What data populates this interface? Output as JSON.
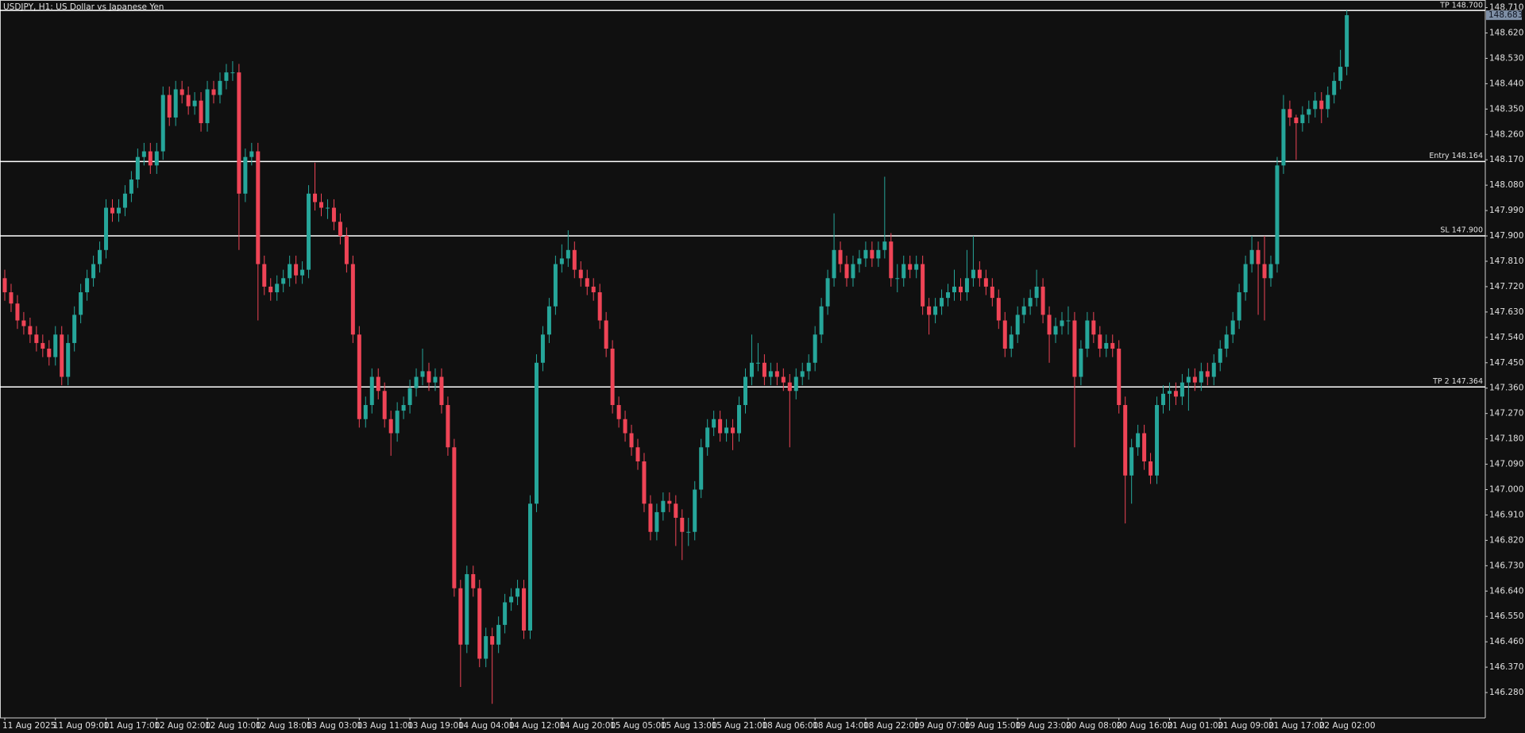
{
  "chart_data": {
    "type": "candlestick",
    "title": "USDJPY, H1: US Dollar vs Japanese Yen",
    "up_color": "#26a69a",
    "down_color": "#ef4456",
    "level_color": "#ffffff",
    "grid": false,
    "ylim": [
      146.19,
      148.72
    ],
    "yticks": [
      {
        "value": 148.71,
        "label": "148.710"
      },
      {
        "value": 148.62,
        "label": "148.620"
      },
      {
        "value": 148.53,
        "label": "148.530"
      },
      {
        "value": 148.44,
        "label": "148.440"
      },
      {
        "value": 148.35,
        "label": "148.350"
      },
      {
        "value": 148.26,
        "label": "148.260"
      },
      {
        "value": 148.17,
        "label": "148.170"
      },
      {
        "value": 148.08,
        "label": "148.080"
      },
      {
        "value": 147.99,
        "label": "147.990"
      },
      {
        "value": 147.9,
        "label": "147.900"
      },
      {
        "value": 147.81,
        "label": "147.810"
      },
      {
        "value": 147.72,
        "label": "147.720"
      },
      {
        "value": 147.63,
        "label": "147.630"
      },
      {
        "value": 147.54,
        "label": "147.540"
      },
      {
        "value": 147.45,
        "label": "147.450"
      },
      {
        "value": 147.36,
        "label": "147.360"
      },
      {
        "value": 147.27,
        "label": "147.270"
      },
      {
        "value": 147.18,
        "label": "147.180"
      },
      {
        "value": 147.09,
        "label": "147.090"
      },
      {
        "value": 147.0,
        "label": "147.000"
      },
      {
        "value": 146.91,
        "label": "146.910"
      },
      {
        "value": 146.82,
        "label": "146.820"
      },
      {
        "value": 146.73,
        "label": "146.730"
      },
      {
        "value": 146.64,
        "label": "146.640"
      },
      {
        "value": 146.55,
        "label": "146.550"
      },
      {
        "value": 146.46,
        "label": "146.460"
      },
      {
        "value": 146.37,
        "label": "146.370"
      },
      {
        "value": 146.28,
        "label": "146.280"
      }
    ],
    "levels": [
      {
        "label": "TP 148.700",
        "value": 148.7
      },
      {
        "label": "Entry 148.164",
        "value": 148.164
      },
      {
        "label": "SL 147.900",
        "value": 147.9
      },
      {
        "label": "TP 2 147.364",
        "value": 147.364
      }
    ],
    "categories": [
      "11 Aug 2025",
      null,
      null,
      null,
      null,
      null,
      null,
      null,
      "11 Aug 09:00",
      null,
      null,
      null,
      null,
      null,
      null,
      null,
      "11 Aug 17:00",
      null,
      null,
      null,
      null,
      null,
      null,
      null,
      "12 Aug 02:00",
      null,
      null,
      null,
      null,
      null,
      null,
      null,
      "12 Aug 10:00",
      null,
      null,
      null,
      null,
      null,
      null,
      null,
      "12 Aug 18:00",
      null,
      null,
      null,
      null,
      null,
      null,
      null,
      "13 Aug 03:00",
      null,
      null,
      null,
      null,
      null,
      null,
      null,
      "13 Aug 11:00",
      null,
      null,
      null,
      null,
      null,
      null,
      null,
      "13 Aug 19:00",
      null,
      null,
      null,
      null,
      null,
      null,
      null,
      "14 Aug 04:00",
      null,
      null,
      null,
      null,
      null,
      null,
      null,
      "14 Aug 12:00",
      null,
      null,
      null,
      null,
      null,
      null,
      null,
      "14 Aug 20:00",
      null,
      null,
      null,
      null,
      null,
      null,
      null,
      "15 Aug 05:00",
      null,
      null,
      null,
      null,
      null,
      null,
      null,
      "15 Aug 13:00",
      null,
      null,
      null,
      null,
      null,
      null,
      null,
      "15 Aug 21:00",
      null,
      null,
      null,
      null,
      null,
      null,
      null,
      "18 Aug 06:00",
      null,
      null,
      null,
      null,
      null,
      null,
      null,
      "18 Aug 14:00",
      null,
      null,
      null,
      null,
      null,
      null,
      null,
      "18 Aug 22:00",
      null,
      null,
      null,
      null,
      null,
      null,
      null,
      "19 Aug 07:00",
      null,
      null,
      null,
      null,
      null,
      null,
      null,
      "19 Aug 15:00",
      null,
      null,
      null,
      null,
      null,
      null,
      null,
      "19 Aug 23:00",
      null,
      null,
      null,
      null,
      null,
      null,
      null,
      "20 Aug 08:00",
      null,
      null,
      null,
      null,
      null,
      null,
      null,
      "20 Aug 16:00",
      null,
      null,
      null,
      null,
      null,
      null,
      null,
      "21 Aug 01:00",
      null,
      null,
      null,
      null,
      null,
      null,
      null,
      "21 Aug 09:00",
      null,
      null,
      null,
      null,
      null,
      null,
      null,
      "21 Aug 17:00",
      null,
      null,
      null,
      null,
      null,
      null,
      null,
      "22 Aug 02:00",
      null,
      null,
      null,
      null
    ],
    "open": [
      147.75,
      147.7,
      147.66,
      147.6,
      147.58,
      147.55,
      147.52,
      147.5,
      147.47,
      147.55,
      147.4,
      147.52,
      147.62,
      147.7,
      147.75,
      147.8,
      147.85,
      148.0,
      147.98,
      148.0,
      148.05,
      148.1,
      148.18,
      148.2,
      148.15,
      148.2,
      148.4,
      148.32,
      148.42,
      148.4,
      148.36,
      148.38,
      148.3,
      148.42,
      148.4,
      148.45,
      148.48,
      148.48,
      148.05,
      148.18,
      148.2,
      147.8,
      147.72,
      147.7,
      147.73,
      147.75,
      147.8,
      147.76,
      147.78,
      148.05,
      148.02,
      148.0,
      148.0,
      147.95,
      147.9,
      147.8,
      147.55,
      147.25,
      147.3,
      147.4,
      147.35,
      147.25,
      147.2,
      147.28,
      147.3,
      147.36,
      147.4,
      147.42,
      147.38,
      147.4,
      147.3,
      147.15,
      146.65,
      146.45,
      146.7,
      146.65,
      146.4,
      146.48,
      146.45,
      146.52,
      146.6,
      146.62,
      146.65,
      146.5,
      146.95,
      147.45,
      147.55,
      147.65,
      147.8,
      147.82,
      147.85,
      147.78,
      147.75,
      147.72,
      147.7,
      147.6,
      147.5,
      147.3,
      147.25,
      147.2,
      147.15,
      147.1,
      146.95,
      146.85,
      146.92,
      146.96,
      146.95,
      146.9,
      146.85,
      146.85,
      147.0,
      147.15,
      147.22,
      147.25,
      147.2,
      147.22,
      147.2,
      147.3,
      147.4,
      147.45,
      147.45,
      147.4,
      147.42,
      147.4,
      147.38,
      147.35,
      147.4,
      147.42,
      147.45,
      147.55,
      147.65,
      147.75,
      147.85,
      147.8,
      147.75,
      147.8,
      147.82,
      147.85,
      147.82,
      147.85,
      147.88,
      147.75,
      147.75,
      147.8,
      147.78,
      147.8,
      147.65,
      147.62,
      147.65,
      147.68,
      147.7,
      147.72,
      147.7,
      147.75,
      147.78,
      147.75,
      147.72,
      147.68,
      147.6,
      147.5,
      147.55,
      147.62,
      147.65,
      147.68,
      147.72,
      147.62,
      147.55,
      147.58,
      147.6,
      147.6,
      147.4,
      147.5,
      147.6,
      147.55,
      147.5,
      147.52,
      147.5,
      147.3,
      147.05,
      147.15,
      147.2,
      147.1,
      147.05,
      147.3,
      147.34,
      147.35,
      147.33,
      147.38,
      147.4,
      147.38,
      147.42,
      147.4,
      147.45,
      147.5,
      147.55,
      147.6,
      147.7,
      147.8,
      147.85,
      147.8,
      147.75,
      147.8,
      148.15,
      148.35,
      148.32,
      148.3,
      148.33,
      148.35,
      148.38,
      148.35,
      148.4,
      148.45,
      148.5
    ],
    "high": [
      147.78,
      147.73,
      147.69,
      147.63,
      147.61,
      147.58,
      147.55,
      147.53,
      147.58,
      147.58,
      147.55,
      147.65,
      147.73,
      147.78,
      147.83,
      147.88,
      148.03,
      148.03,
      148.03,
      148.08,
      148.13,
      148.21,
      148.23,
      148.23,
      148.23,
      148.43,
      148.43,
      148.45,
      148.45,
      148.43,
      148.41,
      148.41,
      148.45,
      148.45,
      148.48,
      148.51,
      148.52,
      148.51,
      148.21,
      148.23,
      148.23,
      147.83,
      147.75,
      147.76,
      147.78,
      147.83,
      147.83,
      147.81,
      148.08,
      148.16,
      148.05,
      148.03,
      148.03,
      147.98,
      147.93,
      147.83,
      147.58,
      147.33,
      147.43,
      147.43,
      147.38,
      147.28,
      147.31,
      147.33,
      147.39,
      147.43,
      147.5,
      147.45,
      147.43,
      147.43,
      147.33,
      147.18,
      146.68,
      146.73,
      146.73,
      146.68,
      146.51,
      146.51,
      146.55,
      146.63,
      146.65,
      146.68,
      146.68,
      146.98,
      147.48,
      147.58,
      147.68,
      147.83,
      147.87,
      147.92,
      147.88,
      147.81,
      147.78,
      147.75,
      147.73,
      147.63,
      147.53,
      147.33,
      147.28,
      147.23,
      147.18,
      147.13,
      146.98,
      146.95,
      146.99,
      146.99,
      146.98,
      146.93,
      146.9,
      147.03,
      147.18,
      147.25,
      147.28,
      147.28,
      147.25,
      147.25,
      147.33,
      147.43,
      147.55,
      147.52,
      147.48,
      147.45,
      147.45,
      147.43,
      147.41,
      147.43,
      147.45,
      147.48,
      147.58,
      147.68,
      147.78,
      147.98,
      147.88,
      147.83,
      147.83,
      147.85,
      147.88,
      147.88,
      147.88,
      148.11,
      147.91,
      147.8,
      147.83,
      147.83,
      147.83,
      147.83,
      147.68,
      147.68,
      147.71,
      147.73,
      147.78,
      147.75,
      147.85,
      147.9,
      147.81,
      147.78,
      147.75,
      147.71,
      147.63,
      147.58,
      147.65,
      147.68,
      147.71,
      147.78,
      147.75,
      147.65,
      147.61,
      147.63,
      147.65,
      147.63,
      147.53,
      147.63,
      147.63,
      147.58,
      147.55,
      147.55,
      147.53,
      147.33,
      147.18,
      147.23,
      147.23,
      147.13,
      147.33,
      147.37,
      147.38,
      147.38,
      147.41,
      147.43,
      147.43,
      147.45,
      147.45,
      147.48,
      147.53,
      147.58,
      147.63,
      147.73,
      147.83,
      147.9,
      147.88,
      147.9,
      147.83,
      148.18,
      148.4,
      148.38,
      148.33,
      148.36,
      148.38,
      148.41,
      148.41,
      148.43,
      148.48,
      148.56,
      148.7
    ],
    "low": [
      147.67,
      147.63,
      147.57,
      147.55,
      147.52,
      147.49,
      147.47,
      147.44,
      147.44,
      147.37,
      147.37,
      147.49,
      147.59,
      147.67,
      147.72,
      147.77,
      147.82,
      147.95,
      147.95,
      147.97,
      148.02,
      148.07,
      148.15,
      148.12,
      148.12,
      148.17,
      148.29,
      148.29,
      148.37,
      148.33,
      148.33,
      148.27,
      148.27,
      148.37,
      148.37,
      148.42,
      148.45,
      147.85,
      148.02,
      148.15,
      147.6,
      147.69,
      147.67,
      147.67,
      147.7,
      147.72,
      147.73,
      147.73,
      147.75,
      147.99,
      147.97,
      147.96,
      147.92,
      147.87,
      147.77,
      147.52,
      147.22,
      147.22,
      147.27,
      147.32,
      147.22,
      147.12,
      147.17,
      147.25,
      147.27,
      147.33,
      147.37,
      147.35,
      147.35,
      147.27,
      147.12,
      146.62,
      146.3,
      146.42,
      146.62,
      146.37,
      146.37,
      146.24,
      146.42,
      146.49,
      146.57,
      146.59,
      146.47,
      146.47,
      146.92,
      147.42,
      147.52,
      147.62,
      147.77,
      147.79,
      147.75,
      147.72,
      147.69,
      147.67,
      147.57,
      147.47,
      147.27,
      147.22,
      147.17,
      147.12,
      147.07,
      146.92,
      146.82,
      146.82,
      146.89,
      146.92,
      146.8,
      146.75,
      146.8,
      146.82,
      146.97,
      147.12,
      147.19,
      147.17,
      147.17,
      147.14,
      147.17,
      147.27,
      147.37,
      147.42,
      147.37,
      147.37,
      147.37,
      147.35,
      147.15,
      147.32,
      147.37,
      147.39,
      147.42,
      147.52,
      147.62,
      147.72,
      147.77,
      147.72,
      147.72,
      147.77,
      147.79,
      147.79,
      147.79,
      147.82,
      147.72,
      147.7,
      147.72,
      147.75,
      147.75,
      147.62,
      147.55,
      147.59,
      147.62,
      147.65,
      147.67,
      147.67,
      147.67,
      147.72,
      147.72,
      147.69,
      147.65,
      147.57,
      147.47,
      147.47,
      147.52,
      147.59,
      147.62,
      147.65,
      147.59,
      147.45,
      147.52,
      147.55,
      147.55,
      147.15,
      147.37,
      147.47,
      147.52,
      147.47,
      147.47,
      147.47,
      147.27,
      146.88,
      146.95,
      147.12,
      147.07,
      147.02,
      147.02,
      147.27,
      147.28,
      147.3,
      147.3,
      147.28,
      147.35,
      147.35,
      147.37,
      147.37,
      147.42,
      147.47,
      147.52,
      147.57,
      147.67,
      147.77,
      147.62,
      147.6,
      147.72,
      147.77,
      148.12,
      148.29,
      148.17,
      148.27,
      148.3,
      148.32,
      148.3,
      148.32,
      148.37,
      148.42,
      148.47
    ],
    "close": [
      147.7,
      147.66,
      147.6,
      147.58,
      147.55,
      147.52,
      147.5,
      147.47,
      147.55,
      147.4,
      147.52,
      147.62,
      147.7,
      147.75,
      147.8,
      147.85,
      148.0,
      147.98,
      148.0,
      148.05,
      148.1,
      148.18,
      148.2,
      148.15,
      148.2,
      148.4,
      148.32,
      148.42,
      148.4,
      148.36,
      148.38,
      148.3,
      148.42,
      148.4,
      148.45,
      148.48,
      148.48,
      148.05,
      148.18,
      148.2,
      147.8,
      147.72,
      147.7,
      147.73,
      147.75,
      147.8,
      147.76,
      147.78,
      148.05,
      148.02,
      148.0,
      148.0,
      147.95,
      147.9,
      147.8,
      147.55,
      147.25,
      147.3,
      147.4,
      147.35,
      147.25,
      147.2,
      147.28,
      147.3,
      147.36,
      147.4,
      147.42,
      147.38,
      147.4,
      147.3,
      147.15,
      146.65,
      146.45,
      146.7,
      146.65,
      146.4,
      146.48,
      146.45,
      146.52,
      146.6,
      146.62,
      146.65,
      146.5,
      146.95,
      147.45,
      147.55,
      147.65,
      147.8,
      147.82,
      147.85,
      147.78,
      147.75,
      147.72,
      147.7,
      147.6,
      147.5,
      147.3,
      147.25,
      147.2,
      147.15,
      147.1,
      146.95,
      146.85,
      146.92,
      146.96,
      146.95,
      146.9,
      146.85,
      146.85,
      147.0,
      147.15,
      147.22,
      147.25,
      147.2,
      147.22,
      147.2,
      147.3,
      147.4,
      147.45,
      147.45,
      147.4,
      147.42,
      147.4,
      147.38,
      147.35,
      147.4,
      147.42,
      147.45,
      147.55,
      147.65,
      147.75,
      147.85,
      147.8,
      147.75,
      147.8,
      147.82,
      147.85,
      147.82,
      147.85,
      147.88,
      147.75,
      147.75,
      147.8,
      147.78,
      147.8,
      147.65,
      147.62,
      147.65,
      147.68,
      147.7,
      147.72,
      147.7,
      147.75,
      147.78,
      147.75,
      147.72,
      147.68,
      147.6,
      147.5,
      147.55,
      147.62,
      147.65,
      147.68,
      147.72,
      147.62,
      147.55,
      147.58,
      147.6,
      147.6,
      147.4,
      147.5,
      147.6,
      147.55,
      147.5,
      147.52,
      147.5,
      147.3,
      147.05,
      147.15,
      147.2,
      147.1,
      147.05,
      147.3,
      147.34,
      147.35,
      147.33,
      147.38,
      147.4,
      147.38,
      147.42,
      147.4,
      147.45,
      147.5,
      147.55,
      147.6,
      147.7,
      147.8,
      147.85,
      147.8,
      147.75,
      147.8,
      148.15,
      148.35,
      148.32,
      148.3,
      148.33,
      148.35,
      148.38,
      148.35,
      148.4,
      148.45,
      148.5,
      148.683
    ]
  }
}
